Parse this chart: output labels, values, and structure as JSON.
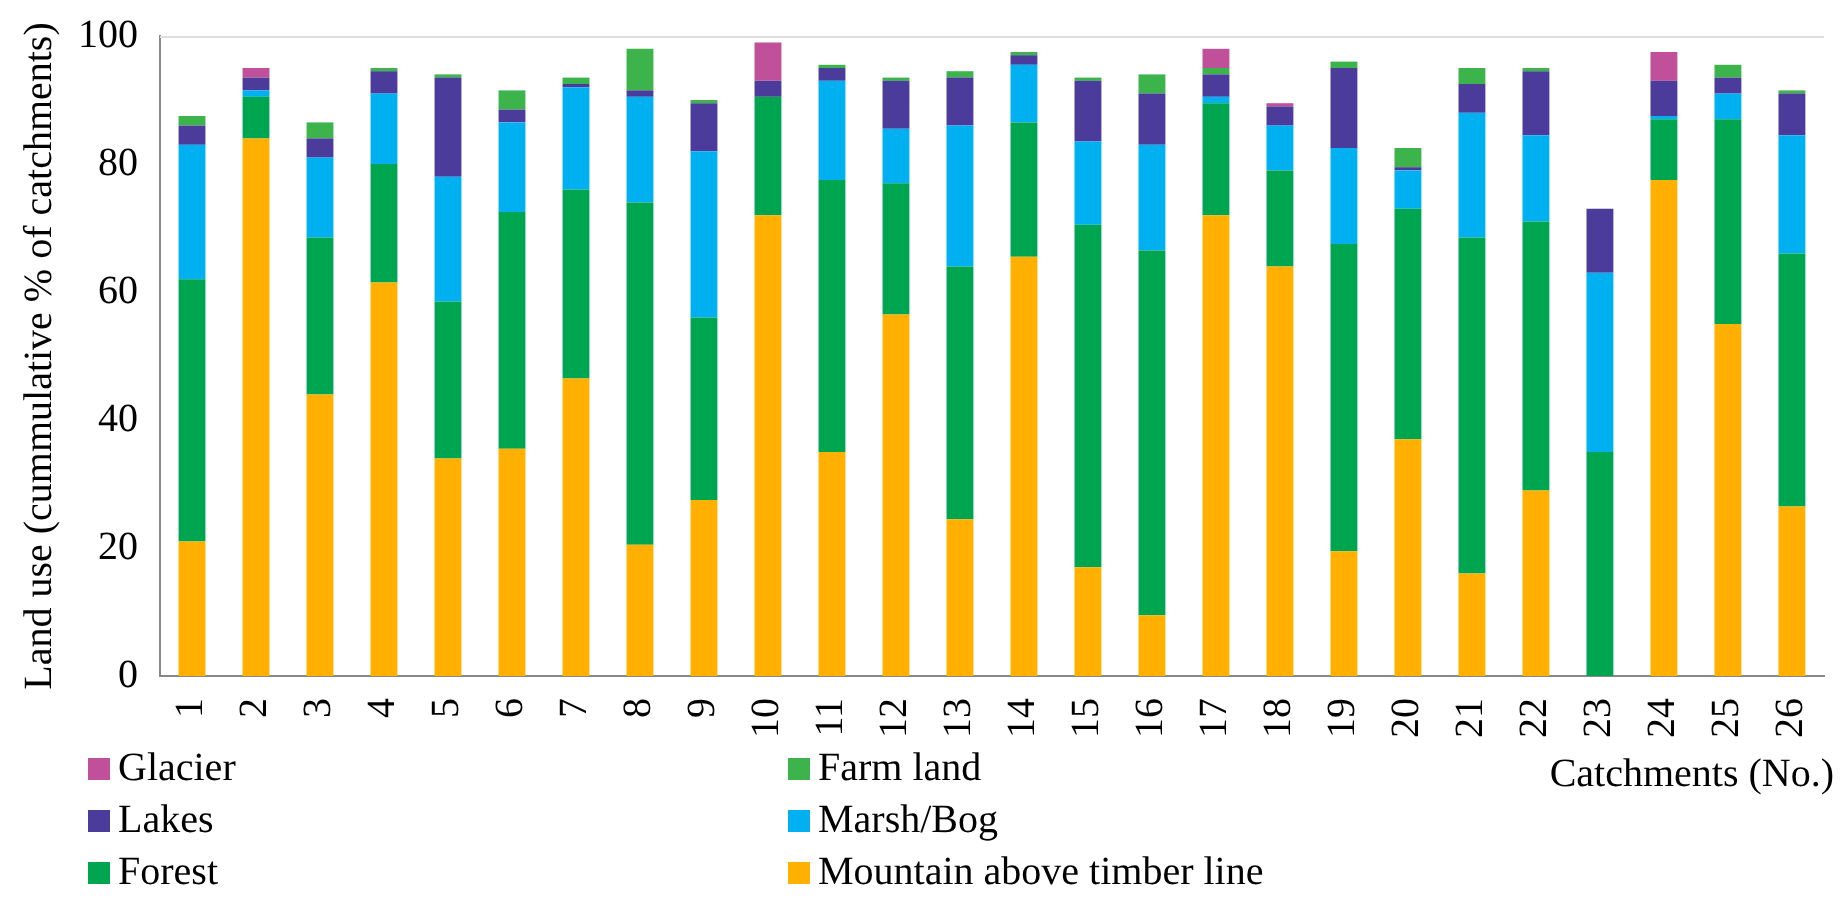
{
  "chart_data": {
    "type": "bar",
    "stacked": true,
    "ylabel": "Land use (cummulative % of catchments)",
    "xlabel": "Catchments (No.)",
    "categories": [
      "1",
      "2",
      "3",
      "4",
      "5",
      "6",
      "7",
      "8",
      "9",
      "10",
      "11",
      "12",
      "13",
      "14",
      "15",
      "16",
      "17",
      "18",
      "19",
      "20",
      "21",
      "22",
      "23",
      "24",
      "25",
      "26"
    ],
    "ylim": [
      0,
      100
    ],
    "yticks": [
      0,
      20,
      40,
      60,
      80,
      100
    ],
    "grid": false,
    "legend": "bottom",
    "series": [
      {
        "name": "Mountain above timber line",
        "color": "#ffb000",
        "values": [
          21,
          84,
          44,
          61.5,
          34,
          35.5,
          46.5,
          20.5,
          27.5,
          72,
          35,
          56.5,
          24.5,
          65.5,
          17,
          9.5,
          72,
          64,
          19.5,
          37,
          16,
          29,
          0,
          77.5,
          55,
          26.5
        ]
      },
      {
        "name": "Forest",
        "color": "#00a550",
        "values": [
          41,
          6.5,
          24.5,
          18.5,
          24.5,
          37,
          29.5,
          53.5,
          28.5,
          18.5,
          42.5,
          20.5,
          39.5,
          21,
          53.5,
          57,
          17.5,
          15,
          48,
          36,
          52.5,
          42,
          35,
          9.5,
          32,
          39.5
        ]
      },
      {
        "name": "Marsh/Bog",
        "color": "#00b0f0",
        "values": [
          21,
          1,
          12.5,
          11,
          19.5,
          14,
          16,
          16.5,
          26,
          0,
          15.5,
          8.5,
          22,
          9,
          13,
          16.5,
          1,
          7,
          15,
          6,
          19.5,
          13.5,
          28,
          0.5,
          4,
          18.5
        ]
      },
      {
        "name": "Lakes",
        "color": "#4b3c9c",
        "values": [
          3,
          2,
          3,
          3.5,
          15.5,
          2,
          0.5,
          1,
          7.5,
          2.5,
          2,
          7.5,
          7.5,
          1.5,
          9.5,
          8,
          3.5,
          3,
          12.5,
          0.5,
          4.5,
          10,
          10,
          5.5,
          2.5,
          6.5
        ]
      },
      {
        "name": "Farm land",
        "color": "#3cb44b",
        "values": [
          1.5,
          0,
          2.5,
          0.5,
          0.5,
          3,
          1,
          6.5,
          0.5,
          0,
          0.5,
          0.5,
          1,
          0.5,
          0.5,
          3,
          1,
          0,
          1,
          3,
          2.5,
          0.5,
          0,
          0,
          2,
          0.5
        ]
      },
      {
        "name": "Glacier",
        "color": "#c0509a",
        "values": [
          0,
          1.5,
          0,
          0,
          0,
          0,
          0,
          0,
          0,
          6,
          0,
          0,
          0,
          0,
          0,
          0,
          3,
          0.5,
          0,
          0,
          0,
          0,
          0,
          4.5,
          0,
          0
        ]
      }
    ]
  }
}
